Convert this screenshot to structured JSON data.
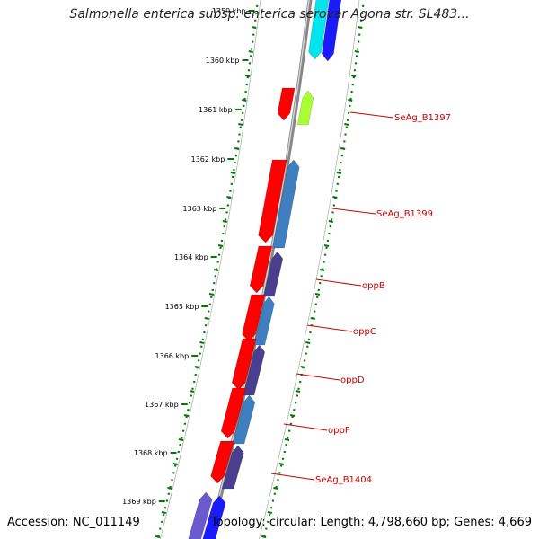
{
  "title": "Salmonella enterica subsp. enterica serovar Agona str. SL483...",
  "footer": {
    "accession": "Accession: NC_011149",
    "topology": "Topology: circular; Length: 4,798,660 bp; Genes: 4,669"
  },
  "colors": {
    "forward_strand": "#ff0000",
    "reverse_teal": "#3f7fbf",
    "reverse_navy": "#4a3f8f",
    "reverse_cyan": "#00e5ee",
    "reverse_blue": "#1a1aff",
    "reverse_lime": "#aaff33",
    "reverse_violet": "#6a5acd",
    "tick_green": "#007a00",
    "label_red": "#cc0000",
    "backbone_gray": "#888888"
  },
  "kbp_ticks": [
    "1359 kbp",
    "1360 kbp",
    "1361 kbp",
    "1362 kbp",
    "1363 kbp",
    "1364 kbp",
    "1365 kbp",
    "1366 kbp",
    "1367 kbp",
    "1368 kbp",
    "1369 kbp"
  ],
  "gene_labels": [
    "SeAg_B1397",
    "SeAg_B1399",
    "oppB",
    "oppC",
    "oppD",
    "oppF",
    "SeAg_B1404"
  ]
}
